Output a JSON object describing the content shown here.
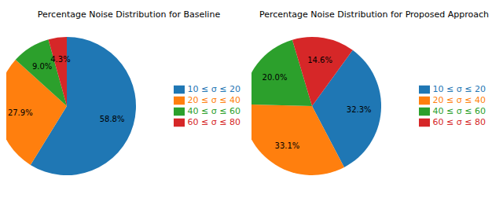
{
  "chart_data": [
    {
      "type": "pie",
      "title": "Percentage Noise Distribution for Baseline",
      "categories": [
        "10 ≤ σ ≤ 20",
        "20 ≤ σ ≤ 40",
        "40 ≤ σ ≤ 60",
        "60 ≤ σ ≤ 80"
      ],
      "values": [
        58.8,
        27.9,
        9.0,
        4.3
      ],
      "value_labels": [
        "58.8%",
        "27.9%",
        "9.0%",
        "4.3%"
      ],
      "colors": [
        "#1f77b4",
        "#ff7f0e",
        "#2ca02c",
        "#d62728"
      ],
      "data_labels": true,
      "legend": "right"
    },
    {
      "type": "pie",
      "title": "Percentage Noise Distribution for Proposed Approach",
      "categories": [
        "10 ≤ σ ≤ 20",
        "20 ≤ σ ≤ 40",
        "40 ≤ σ ≤ 60",
        "60 ≤ σ ≤ 80"
      ],
      "values": [
        32.3,
        33.1,
        20.0,
        14.6
      ],
      "value_labels": [
        "32.3%",
        "33.1%",
        "20.0%",
        "14.6%"
      ],
      "colors": [
        "#1f77b4",
        "#ff7f0e",
        "#2ca02c",
        "#d62728"
      ],
      "data_labels": true,
      "legend": "right"
    }
  ]
}
